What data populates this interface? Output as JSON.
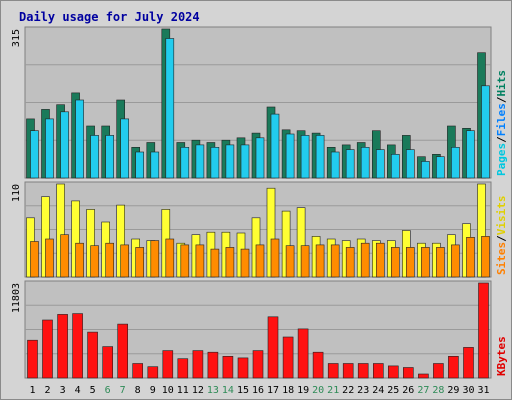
{
  "chart_data": {
    "type": "bar",
    "title": "Daily usage for July 2024",
    "categories": [
      "1",
      "2",
      "3",
      "4",
      "5",
      "6",
      "7",
      "8",
      "9",
      "10",
      "11",
      "12",
      "13",
      "14",
      "15",
      "16",
      "17",
      "18",
      "19",
      "20",
      "21",
      "22",
      "23",
      "24",
      "25",
      "26",
      "27",
      "28",
      "29",
      "30",
      "31"
    ],
    "weekend_days": [
      "6",
      "7",
      "13",
      "14",
      "20",
      "21",
      "27",
      "28"
    ],
    "panels": [
      {
        "id": "hits",
        "max_label": "315",
        "ylim": [
          0,
          315
        ],
        "legend": [
          {
            "text": "Pages",
            "color": "#00c8e0"
          },
          {
            "text": "/",
            "color": "#000000"
          },
          {
            "text": "Files",
            "color": "#0080ff"
          },
          {
            "text": "/",
            "color": "#000000"
          },
          {
            "text": "Hits",
            "color": "#008060"
          }
        ],
        "series": [
          {
            "name": "Hits",
            "color": "#1a7a5a",
            "values": [
              125,
              145,
              155,
              180,
              110,
              110,
              165,
              65,
              75,
              315,
              75,
              80,
              75,
              80,
              85,
              95,
              150,
              102,
              100,
              95,
              65,
              70,
              75,
              100,
              70,
              90,
              45,
              50,
              110,
              105,
              265
            ]
          },
          {
            "name": "Files",
            "color": "#22ccee",
            "values": [
              100,
              125,
              140,
              165,
              90,
              90,
              125,
              55,
              55,
              295,
              65,
              70,
              65,
              70,
              70,
              85,
              135,
              93,
              90,
              90,
              55,
              60,
              65,
              60,
              50,
              60,
              35,
              45,
              65,
              100,
              195
            ]
          }
        ]
      },
      {
        "id": "visits",
        "max_label": "110",
        "ylim": [
          0,
          110
        ],
        "legend": [
          {
            "text": "Sites",
            "color": "#ff8000"
          },
          {
            "text": "/",
            "color": "#000000"
          },
          {
            "text": "Visits",
            "color": "#e0d000"
          }
        ],
        "series": [
          {
            "name": "Visits",
            "color": "#ffff33",
            "values": [
              70,
              95,
              110,
              90,
              80,
              65,
              85,
              45,
              43,
              80,
              40,
              50,
              53,
              53,
              52,
              70,
              105,
              78,
              82,
              48,
              45,
              43,
              45,
              43,
              43,
              55,
              40,
              40,
              50,
              63,
              110
            ]
          },
          {
            "name": "Sites",
            "color": "#ff8c00",
            "values": [
              42,
              45,
              50,
              40,
              37,
              40,
              38,
              35,
              43,
              45,
              38,
              38,
              33,
              35,
              33,
              38,
              45,
              37,
              37,
              38,
              38,
              35,
              40,
              40,
              35,
              35,
              35,
              35,
              38,
              47,
              48
            ]
          }
        ]
      },
      {
        "id": "kbytes",
        "max_label": "11803",
        "ylim": [
          0,
          11803
        ],
        "legend": [
          {
            "text": "KBytes",
            "color": "#e00000"
          }
        ],
        "series": [
          {
            "name": "KBytes",
            "color": "#ff1111",
            "values": [
              4700,
              7200,
              7900,
              8000,
              5700,
              3900,
              6700,
              1800,
              1400,
              3400,
              2400,
              3400,
              3200,
              2700,
              2500,
              3400,
              7600,
              5100,
              6100,
              3200,
              1800,
              1800,
              1800,
              1800,
              1500,
              1300,
              500,
              1800,
              2700,
              3800,
              11803
            ]
          }
        ]
      }
    ]
  }
}
